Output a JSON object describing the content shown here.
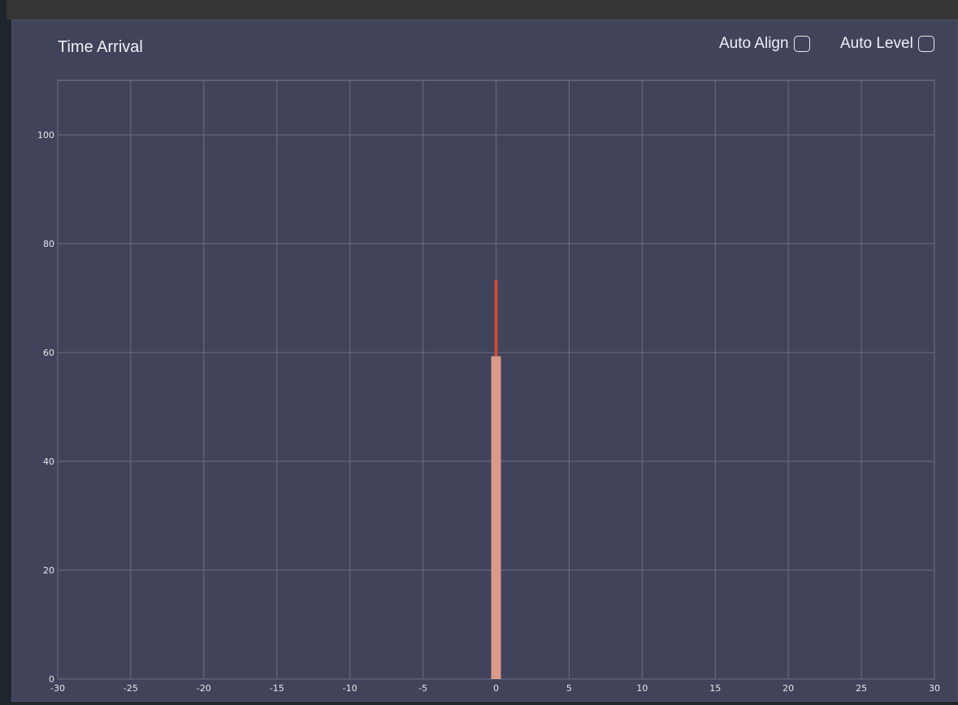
{
  "panel": {
    "title": "Time Arrival",
    "controls": [
      {
        "label": "Auto Align",
        "checked": false
      },
      {
        "label": "Auto Level",
        "checked": false
      }
    ]
  },
  "chart_data": {
    "type": "bar",
    "title": "Time Arrival",
    "xlabel": "",
    "ylabel": "",
    "xlim": [
      -30,
      30
    ],
    "ylim": [
      0,
      110
    ],
    "x_ticks": [
      -30,
      -25,
      -20,
      -15,
      -10,
      -5,
      0,
      5,
      10,
      15,
      20,
      25,
      30
    ],
    "y_ticks": [
      0,
      20,
      40,
      60,
      80,
      100
    ],
    "grid": true,
    "series": [
      {
        "x": 0,
        "value": 59.3,
        "color": "#d99a88"
      },
      {
        "x": 0,
        "value": 73.3,
        "color": "#d04a3a"
      }
    ]
  }
}
